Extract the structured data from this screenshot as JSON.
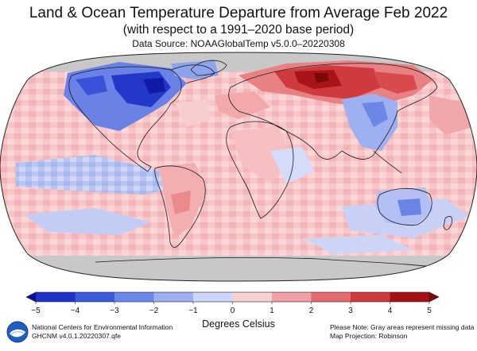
{
  "title": "Land & Ocean Temperature Departure from Average Feb 2022",
  "subtitle": "(with respect to a 1991–2020 base period)",
  "source": "Data Source: NOAAGlobalTemp v5.0.0–20220308",
  "colorbar": {
    "ticks": [
      "−5",
      "−4",
      "−3",
      "−2",
      "−1",
      "0",
      "1",
      "2",
      "3",
      "4",
      "5"
    ],
    "label": "Degrees Celsius",
    "range": [
      -5,
      5
    ],
    "colors": [
      "#0a0aa5",
      "#1f31c8",
      "#3b5bdb",
      "#6a86e8",
      "#9cb0f2",
      "#cfd6fb",
      "#f8d2d2",
      "#f1a0a3",
      "#e56a6e",
      "#d03a3d",
      "#a51216",
      "#7a0a0a"
    ]
  },
  "footer": {
    "left_line1": "National Centers for Environmental Information",
    "left_line2": "GHCNM v4.0.1.20220307.qfe",
    "right_line1": "Please Note: Gray areas represent missing data",
    "right_line2": "Map Projection: Robinson",
    "logo": "noaa-logo"
  },
  "map": {
    "projection": "Robinson",
    "missing_color": "#c8c8c8",
    "regions": [
      {
        "id": "eurasia-north-anomaly",
        "level": 4.5
      },
      {
        "id": "north-america-anomaly",
        "level": -4
      },
      {
        "id": "east-asia-anomaly",
        "level": -2
      },
      {
        "id": "australia-anomaly",
        "level": -2
      },
      {
        "id": "arctic-missing",
        "level": null
      },
      {
        "id": "antarctica-missing",
        "level": null
      }
    ]
  }
}
